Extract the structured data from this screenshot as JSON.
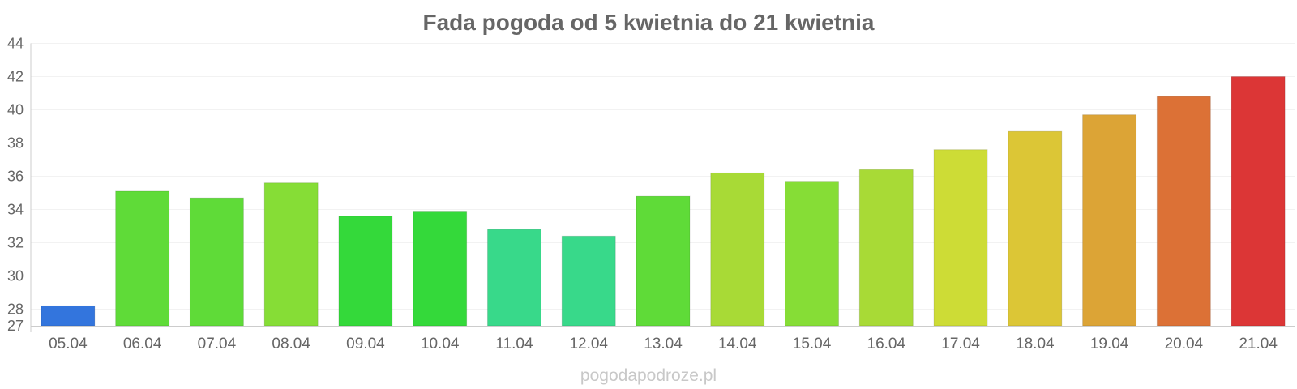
{
  "chart_data": {
    "type": "bar",
    "title": "Fada pogoda od 5 kwietnia do 21 kwietnia",
    "xlabel": "",
    "ylabel": "",
    "ylim": [
      27,
      44
    ],
    "yticks": [
      27,
      28,
      30,
      32,
      34,
      36,
      38,
      40,
      42,
      44
    ],
    "grid": true,
    "categories": [
      "05.04",
      "06.04",
      "07.04",
      "08.04",
      "09.04",
      "10.04",
      "11.04",
      "12.04",
      "13.04",
      "14.04",
      "15.04",
      "16.04",
      "17.04",
      "18.04",
      "19.04",
      "20.04",
      "21.04"
    ],
    "values": [
      28.2,
      35.1,
      34.7,
      35.6,
      33.6,
      33.9,
      32.8,
      32.4,
      34.8,
      36.2,
      35.7,
      36.4,
      37.6,
      38.7,
      39.7,
      40.8,
      42.0
    ],
    "colors": [
      "#3375dd",
      "#5fdb38",
      "#5fdb38",
      "#86dd36",
      "#34d93a",
      "#34d93a",
      "#38d98a",
      "#38d98a",
      "#5fdb38",
      "#a8da36",
      "#86dd36",
      "#a8da36",
      "#cddc36",
      "#dcc636",
      "#dca436",
      "#dc7136",
      "#dc3636"
    ]
  },
  "footer": {
    "credit": "pogodapodroze.pl"
  }
}
